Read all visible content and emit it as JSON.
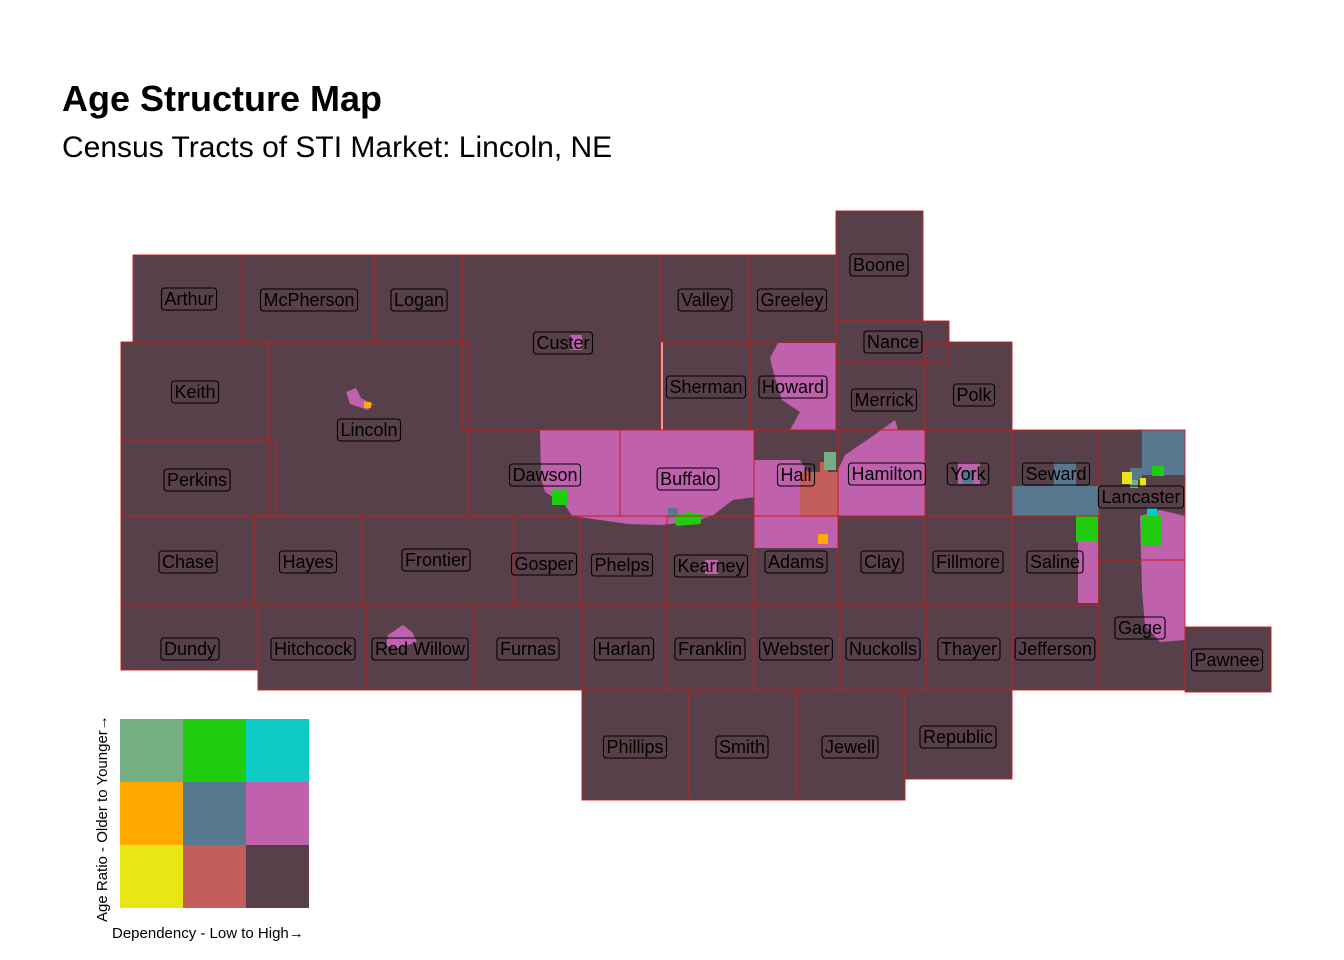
{
  "title": "Age Structure Map",
  "subtitle": "Census Tracts of STI Market: Lincoln, NE",
  "colors": {
    "base": "#58404a",
    "border": "#d01818",
    "pink": "#c061ae",
    "green": "#1fcc10",
    "steel": "#58788f",
    "sage": "#74ae82",
    "orange": "#ffa800",
    "salmon": "#c45e5b",
    "yellow": "#e8e614",
    "cyan": "#0ecac6"
  },
  "counties": [
    {
      "name": "Arthur",
      "icon": "county-label"
    },
    {
      "name": "McPherson"
    },
    {
      "name": "Logan"
    },
    {
      "name": "Custer"
    },
    {
      "name": "Valley"
    },
    {
      "name": "Greeley"
    },
    {
      "name": "Boone"
    },
    {
      "name": "Nance"
    },
    {
      "name": "Keith"
    },
    {
      "name": "Lincoln"
    },
    {
      "name": "Sherman"
    },
    {
      "name": "Howard"
    },
    {
      "name": "Merrick"
    },
    {
      "name": "Polk"
    },
    {
      "name": "Perkins"
    },
    {
      "name": "Dawson"
    },
    {
      "name": "Buffalo"
    },
    {
      "name": "Hall"
    },
    {
      "name": "Hamilton"
    },
    {
      "name": "York"
    },
    {
      "name": "Seward"
    },
    {
      "name": "Lancaster"
    },
    {
      "name": "Chase"
    },
    {
      "name": "Hayes"
    },
    {
      "name": "Frontier"
    },
    {
      "name": "Gosper"
    },
    {
      "name": "Phelps"
    },
    {
      "name": "Kearney"
    },
    {
      "name": "Adams"
    },
    {
      "name": "Clay"
    },
    {
      "name": "Fillmore"
    },
    {
      "name": "Saline"
    },
    {
      "name": "Dundy"
    },
    {
      "name": "Hitchcock"
    },
    {
      "name": "Red Willow"
    },
    {
      "name": "Furnas"
    },
    {
      "name": "Harlan"
    },
    {
      "name": "Franklin"
    },
    {
      "name": "Webster"
    },
    {
      "name": "Nuckolls"
    },
    {
      "name": "Thayer"
    },
    {
      "name": "Jefferson"
    },
    {
      "name": "Gage"
    },
    {
      "name": "Pawnee"
    },
    {
      "name": "Phillips"
    },
    {
      "name": "Smith"
    },
    {
      "name": "Jewell"
    },
    {
      "name": "Republic"
    }
  ],
  "legend": {
    "x_label": "Dependency - Low to High→",
    "y_label": "Age Ratio - Older to Younger→",
    "cells": [
      [
        "#74ae82",
        "#1fcc10",
        "#0ecac6"
      ],
      [
        "#ffa800",
        "#58788f",
        "#c061ae"
      ],
      [
        "#e8e614",
        "#c45e5b",
        "#58404a"
      ]
    ]
  }
}
